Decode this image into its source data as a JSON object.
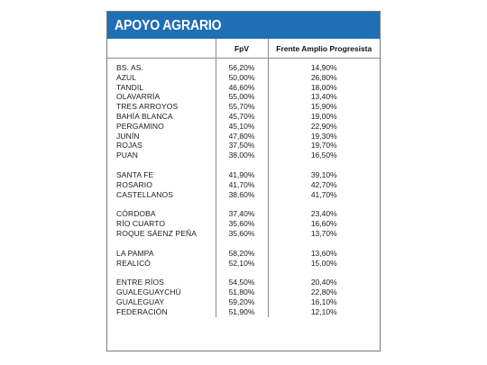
{
  "title": "APOYO AGRARIO",
  "headers": {
    "location": "",
    "fpv": "FpV",
    "fap": "Frente Amplio Progresista"
  },
  "groups": [
    {
      "rows": [
        {
          "loc": "BS. AS.",
          "fpv": "56,20%",
          "fap": "14,90%"
        },
        {
          "loc": "AZUL",
          "fpv": "50,00%",
          "fap": "26,80%"
        },
        {
          "loc": "TANDIL",
          "fpv": "46,60%",
          "fap": "18,00%"
        },
        {
          "loc": "OLAVARRÍA",
          "fpv": "55,00%",
          "fap": "13,40%"
        },
        {
          "loc": "TRES ARROYOS",
          "fpv": "55,70%",
          "fap": "15,90%"
        },
        {
          "loc": "BAHÍA BLANCA",
          "fpv": "45,70%",
          "fap": "19,00%"
        },
        {
          "loc": "PERGAMINO",
          "fpv": "45,10%",
          "fap": "22,90%"
        },
        {
          "loc": "JUNÍN",
          "fpv": "47,80%",
          "fap": "19,30%"
        },
        {
          "loc": "ROJAS",
          "fpv": "37,50%",
          "fap": "19,70%"
        },
        {
          "loc": "PUAN",
          "fpv": "38,00%",
          "fap": "16,50%"
        }
      ]
    },
    {
      "rows": [
        {
          "loc": "SANTA FE",
          "fpv": "41,90%",
          "fap": "39,10%"
        },
        {
          "loc": "ROSARIO",
          "fpv": "41,70%",
          "fap": "42,70%"
        },
        {
          "loc": "CASTELLANOS",
          "fpv": "38,60%",
          "fap": "41,70%"
        }
      ]
    },
    {
      "rows": [
        {
          "loc": "CÓRDOBA",
          "fpv": "37,40%",
          "fap": "23,40%"
        },
        {
          "loc": "RÍO CUARTO",
          "fpv": "35,60%",
          "fap": "16,60%"
        },
        {
          "loc": "ROQUE SÁENZ PEÑA",
          "fpv": "35,60%",
          "fap": "13,70%"
        }
      ]
    },
    {
      "rows": [
        {
          "loc": "LA PAMPA",
          "fpv": "58,20%",
          "fap": "13,60%"
        },
        {
          "loc": "REALICÓ",
          "fpv": "52,10%",
          "fap": "15,00%"
        }
      ]
    },
    {
      "rows": [
        {
          "loc": "ENTRE RÍOS",
          "fpv": "54,50%",
          "fap": "20,40%"
        },
        {
          "loc": "GUALEGUAYCHÚ",
          "fpv": "51,80%",
          "fap": "22,80%"
        },
        {
          "loc": "GUALEGUAY",
          "fpv": "59,20%",
          "fap": "16,10%"
        },
        {
          "loc": "FEDERACIÓN",
          "fpv": "51,90%",
          "fap": "12,10%"
        }
      ]
    }
  ],
  "colors": {
    "title_bg": "#1f6fb4",
    "title_text": "#ffffff",
    "rule": "#8a8a8a"
  }
}
